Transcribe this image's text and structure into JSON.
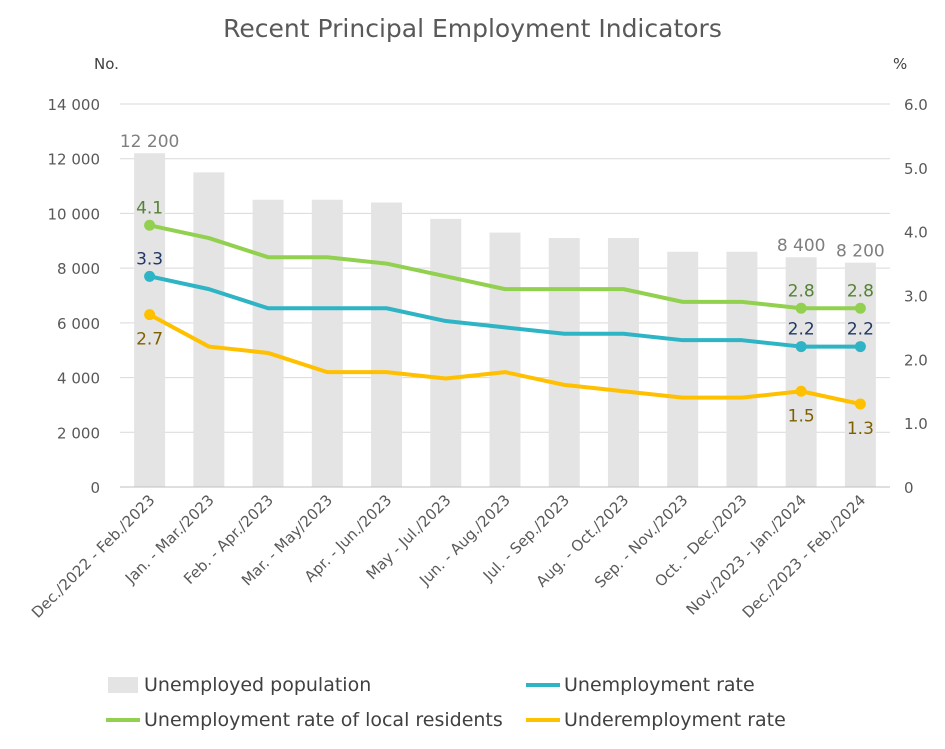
{
  "chart_data": {
    "type": "bar+line",
    "title": "Recent Principal Employment Indicators",
    "left_axis_unit": "No.",
    "right_axis_unit": "%",
    "categories": [
      "Dec./2022 - Feb./2023",
      "Jan. - Mar./2023",
      "Feb. - Apr./2023",
      "Mar. - May/2023",
      "Apr. - Jun./2023",
      "May - Jul./2023",
      "Jun. - Aug./2023",
      "Jul. - Sep./2023",
      "Aug. - Oct./2023",
      "Sep. - Nov./2023",
      "Oct. - Dec./2023",
      "Nov./2023 - Jan./2024",
      "Dec./2023 - Feb./2024"
    ],
    "left_ylim": [
      0,
      14000
    ],
    "left_ticks": [
      "0",
      "2 000",
      "4 000",
      "6 000",
      "8 000",
      "10 000",
      "12 000",
      "14 000"
    ],
    "right_ylim": [
      0,
      6.0
    ],
    "right_ticks": [
      "0",
      "1.0",
      "2.0",
      "3.0",
      "4.0",
      "5.0",
      "6.0"
    ],
    "grid": true,
    "legend_position": "bottom",
    "bar_series": {
      "name": "Unemployed population",
      "color": "#e4e4e4",
      "values": [
        12200,
        11500,
        10500,
        10500,
        10400,
        9800,
        9300,
        9100,
        9100,
        8600,
        8600,
        8400,
        8200
      ],
      "labels": {
        "0": "12 200",
        "11": "8 400",
        "12": "8 200"
      }
    },
    "line_series": [
      {
        "name": "Unemployment rate",
        "color": "#2eb4c4",
        "label_color": "#1f3864",
        "values": [
          3.3,
          3.1,
          2.8,
          2.8,
          2.8,
          2.6,
          2.5,
          2.4,
          2.4,
          2.3,
          2.3,
          2.2,
          2.2
        ],
        "labels": {
          "0": "3.3",
          "11": "2.2",
          "12": "2.2"
        },
        "label_pos": "above"
      },
      {
        "name": "Unemployment rate of local residents",
        "color": "#92d050",
        "label_color": "#548235",
        "values": [
          4.1,
          3.9,
          3.6,
          3.6,
          3.5,
          3.3,
          3.1,
          3.1,
          3.1,
          2.9,
          2.9,
          2.8,
          2.8
        ],
        "labels": {
          "0": "4.1",
          "11": "2.8",
          "12": "2.8"
        },
        "label_pos": "above"
      },
      {
        "name": "Underemployment rate",
        "color": "#ffc000",
        "label_color": "#7f6000",
        "values": [
          2.7,
          2.2,
          2.1,
          1.8,
          1.8,
          1.7,
          1.8,
          1.6,
          1.5,
          1.4,
          1.4,
          1.5,
          1.3
        ],
        "labels": {
          "0": "2.7",
          "11": "1.5",
          "12": "1.3"
        },
        "label_pos": "below"
      }
    ]
  }
}
